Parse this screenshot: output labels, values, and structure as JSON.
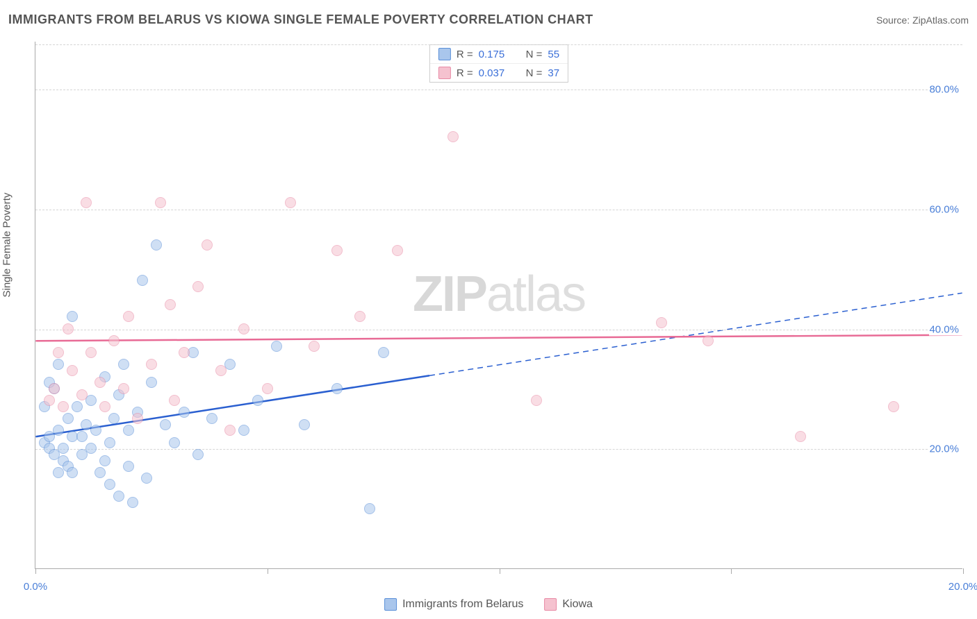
{
  "title": "IMMIGRANTS FROM BELARUS VS KIOWA SINGLE FEMALE POVERTY CORRELATION CHART",
  "source_label": "Source: ",
  "source_value": "ZipAtlas.com",
  "y_axis_label": "Single Female Poverty",
  "watermark_zip": "ZIP",
  "watermark_atlas": "atlas",
  "chart": {
    "type": "scatter",
    "xlim": [
      0,
      20
    ],
    "ylim": [
      0,
      88
    ],
    "x_ticks": [
      0,
      5,
      10,
      15,
      20
    ],
    "x_tick_labels": [
      "0.0%",
      "",
      "",
      "",
      "20.0%"
    ],
    "y_ticks": [
      20,
      40,
      60,
      80
    ],
    "y_tick_labels": [
      "20.0%",
      "40.0%",
      "60.0%",
      "80.0%"
    ],
    "background_color": "#ffffff",
    "grid_color": "#d5d5d5",
    "point_radius": 8,
    "series": [
      {
        "name": "Immigrants from Belarus",
        "fill_color": "#a9c6ec",
        "stroke_color": "#5a8fd8",
        "fill_opacity": 0.55,
        "trend_color": "#2a5fd0",
        "trend_width": 2.5,
        "trend_solid_end_x": 8.5,
        "trend": {
          "y_at_x0": 22,
          "y_at_xmax": 46
        },
        "R": "0.175",
        "N": "55",
        "points": [
          [
            0.2,
            21
          ],
          [
            0.3,
            20
          ],
          [
            0.4,
            19
          ],
          [
            0.3,
            22
          ],
          [
            0.5,
            23
          ],
          [
            0.2,
            27
          ],
          [
            0.4,
            30
          ],
          [
            0.6,
            18
          ],
          [
            0.7,
            17
          ],
          [
            0.5,
            16
          ],
          [
            0.6,
            20
          ],
          [
            0.8,
            22
          ],
          [
            0.7,
            25
          ],
          [
            0.9,
            27
          ],
          [
            0.3,
            31
          ],
          [
            0.5,
            34
          ],
          [
            0.8,
            16
          ],
          [
            1.0,
            19
          ],
          [
            1.0,
            22
          ],
          [
            1.1,
            24
          ],
          [
            1.2,
            20
          ],
          [
            1.3,
            23
          ],
          [
            1.2,
            28
          ],
          [
            1.4,
            16
          ],
          [
            1.5,
            18
          ],
          [
            1.5,
            32
          ],
          [
            1.6,
            14
          ],
          [
            1.6,
            21
          ],
          [
            1.7,
            25
          ],
          [
            1.8,
            12
          ],
          [
            1.8,
            29
          ],
          [
            1.9,
            34
          ],
          [
            2.0,
            17
          ],
          [
            2.0,
            23
          ],
          [
            2.1,
            11
          ],
          [
            2.2,
            26
          ],
          [
            2.3,
            48
          ],
          [
            2.4,
            15
          ],
          [
            2.5,
            31
          ],
          [
            2.6,
            54
          ],
          [
            2.8,
            24
          ],
          [
            3.0,
            21
          ],
          [
            3.2,
            26
          ],
          [
            3.4,
            36
          ],
          [
            3.5,
            19
          ],
          [
            3.8,
            25
          ],
          [
            4.2,
            34
          ],
          [
            4.5,
            23
          ],
          [
            4.8,
            28
          ],
          [
            5.2,
            37
          ],
          [
            5.8,
            24
          ],
          [
            6.5,
            30
          ],
          [
            7.5,
            36
          ],
          [
            0.8,
            42
          ],
          [
            7.2,
            10
          ]
        ]
      },
      {
        "name": "Kiowa",
        "fill_color": "#f5c2cf",
        "stroke_color": "#e88aa5",
        "fill_opacity": 0.55,
        "trend_color": "#e86a95",
        "trend_width": 2.5,
        "trend": {
          "y_at_x0": 38,
          "y_at_xmax": 39
        },
        "R": "0.037",
        "N": "37",
        "points": [
          [
            0.3,
            28
          ],
          [
            0.4,
            30
          ],
          [
            0.5,
            36
          ],
          [
            0.6,
            27
          ],
          [
            0.7,
            40
          ],
          [
            0.8,
            33
          ],
          [
            1.0,
            29
          ],
          [
            1.1,
            61
          ],
          [
            1.2,
            36
          ],
          [
            1.4,
            31
          ],
          [
            1.5,
            27
          ],
          [
            1.7,
            38
          ],
          [
            1.9,
            30
          ],
          [
            2.0,
            42
          ],
          [
            2.2,
            25
          ],
          [
            2.5,
            34
          ],
          [
            2.7,
            61
          ],
          [
            2.9,
            44
          ],
          [
            3.0,
            28
          ],
          [
            3.2,
            36
          ],
          [
            3.5,
            47
          ],
          [
            3.7,
            54
          ],
          [
            4.0,
            33
          ],
          [
            4.2,
            23
          ],
          [
            4.5,
            40
          ],
          [
            5.0,
            30
          ],
          [
            5.5,
            61
          ],
          [
            6.0,
            37
          ],
          [
            6.5,
            53
          ],
          [
            7.0,
            42
          ],
          [
            7.8,
            53
          ],
          [
            9.0,
            72
          ],
          [
            10.8,
            28
          ],
          [
            13.5,
            41
          ],
          [
            14.5,
            38
          ],
          [
            16.5,
            22
          ],
          [
            18.5,
            27
          ]
        ]
      }
    ]
  },
  "legend_top": {
    "r_label": "R =",
    "n_label": "N ="
  },
  "legend_bottom": [
    {
      "label": "Immigrants from Belarus",
      "fill": "#a9c6ec",
      "stroke": "#5a8fd8"
    },
    {
      "label": "Kiowa",
      "fill": "#f5c2cf",
      "stroke": "#e88aa5"
    }
  ]
}
